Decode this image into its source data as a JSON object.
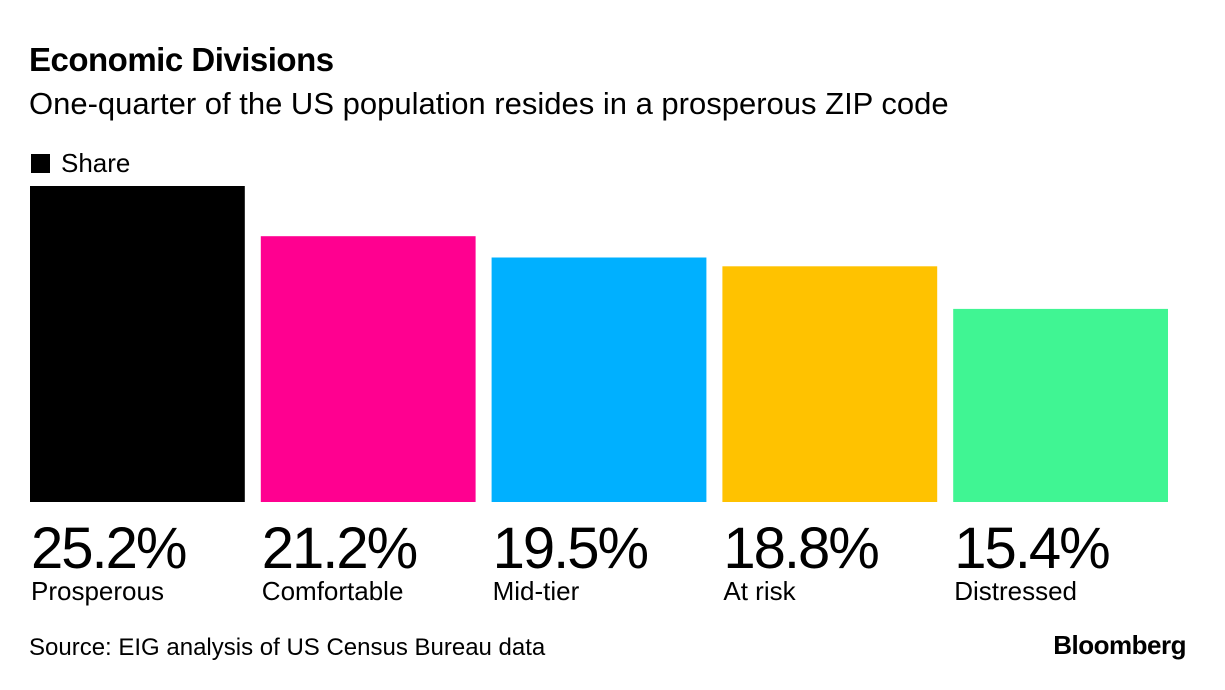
{
  "title": "Economic Divisions",
  "subtitle": "One-quarter of the US population resides in a prosperous ZIP code",
  "source": "Source: EIG analysis of US Census Bureau data",
  "brand": "Bloomberg",
  "chart_data": {
    "type": "bar",
    "title": "Economic Divisions",
    "subtitle": "One-quarter of the US population resides in a prosperous ZIP code",
    "xlabel": "",
    "ylabel": "",
    "grid": false,
    "legend": {
      "position": "top-left",
      "entries": [
        "Share"
      ]
    },
    "categories": [
      "Prosperous",
      "Comfortable",
      "Mid-tier",
      "At risk",
      "Distressed"
    ],
    "series": [
      {
        "name": "Share",
        "values": [
          25.2,
          21.2,
          19.5,
          18.8,
          15.4
        ]
      }
    ],
    "value_labels": [
      "25.2%",
      "21.2%",
      "19.5%",
      "18.8%",
      "15.4%"
    ],
    "colors": [
      "#000000",
      "#ff0090",
      "#00b0ff",
      "#ffc200",
      "#40f593"
    ]
  }
}
